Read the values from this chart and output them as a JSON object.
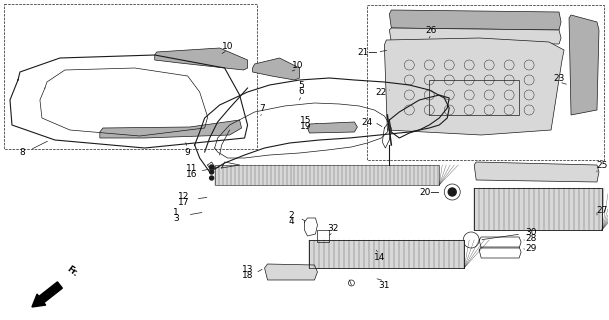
{
  "bg_color": "#ffffff",
  "fig_width": 6.09,
  "fig_height": 3.2,
  "dpi": 100,
  "line_color": "#1a1a1a",
  "gray_fill": "#b0b0b0",
  "light_gray": "#d8d8d8"
}
